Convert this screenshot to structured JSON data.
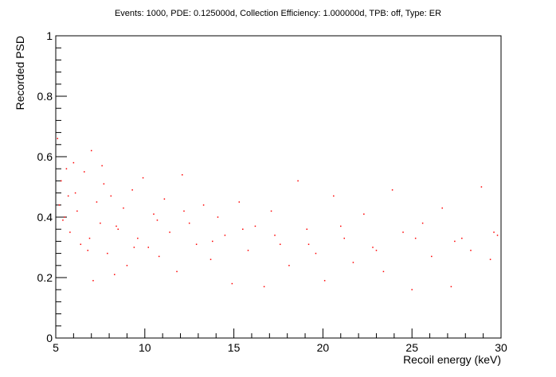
{
  "chart_data": {
    "type": "scatter",
    "title": "Events: 1000, PDE: 0.125000d, Collection Efficiency: 1.000000d, TPB: off, Type: ER",
    "xlabel": "Recoil energy (keV)",
    "ylabel": "Recorded PSD",
    "xlim": [
      5,
      30
    ],
    "ylim": [
      0,
      1
    ],
    "x_ticks": [
      5,
      10,
      15,
      20,
      25,
      30
    ],
    "y_ticks": [
      0,
      0.2,
      0.4,
      0.6,
      0.8,
      1
    ],
    "x_tick_labels": [
      "5",
      "10",
      "15",
      "20",
      "25",
      "30"
    ],
    "y_tick_labels": [
      "0",
      "0.2",
      "0.4",
      "0.6",
      "0.8",
      "1"
    ],
    "grid": false,
    "legend": "none",
    "marker_color": "#ff0000",
    "series": [
      {
        "x": [
          5.1,
          5.2,
          5.3,
          5.4,
          5.6,
          5.7,
          5.8,
          6.0,
          6.2,
          6.4,
          6.6,
          6.8,
          7.0,
          7.1,
          7.3,
          7.5,
          7.7,
          7.9,
          8.1,
          8.3,
          8.5,
          8.8,
          9.0,
          9.3,
          9.6,
          9.9,
          10.2,
          10.5,
          10.8,
          11.1,
          11.4,
          11.8,
          12.1,
          12.5,
          12.9,
          13.3,
          13.7,
          14.1,
          14.5,
          14.9,
          15.3,
          15.8,
          16.2,
          16.7,
          17.1,
          17.6,
          18.1,
          18.6,
          19.1,
          19.6,
          20.1,
          20.6,
          21.2,
          21.7,
          22.3,
          22.8,
          23.4,
          23.9,
          24.5,
          25.0,
          25.6,
          26.1,
          26.7,
          27.2,
          27.8,
          28.3,
          28.9,
          29.4,
          29.8,
          5.5,
          6.1,
          6.9,
          7.6,
          8.4,
          9.4,
          10.7,
          12.2,
          13.8,
          15.5,
          17.3,
          19.2,
          21.0,
          23.0,
          25.2,
          27.4,
          29.6
        ],
        "y": [
          0.66,
          0.44,
          0.52,
          0.39,
          0.56,
          0.47,
          0.35,
          0.58,
          0.42,
          0.31,
          0.55,
          0.29,
          0.62,
          0.19,
          0.45,
          0.38,
          0.51,
          0.28,
          0.47,
          0.21,
          0.36,
          0.43,
          0.24,
          0.49,
          0.33,
          0.53,
          0.3,
          0.41,
          0.27,
          0.46,
          0.35,
          0.22,
          0.54,
          0.38,
          0.31,
          0.44,
          0.26,
          0.4,
          0.34,
          0.18,
          0.45,
          0.29,
          0.37,
          0.17,
          0.42,
          0.31,
          0.24,
          0.52,
          0.36,
          0.28,
          0.19,
          0.47,
          0.33,
          0.25,
          0.41,
          0.3,
          0.22,
          0.49,
          0.35,
          0.16,
          0.38,
          0.27,
          0.43,
          0.17,
          0.33,
          0.29,
          0.5,
          0.26,
          0.34,
          0.4,
          0.48,
          0.33,
          0.57,
          0.37,
          0.3,
          0.39,
          0.42,
          0.32,
          0.36,
          0.34,
          0.31,
          0.37,
          0.29,
          0.33,
          0.32,
          0.35
        ]
      }
    ]
  }
}
